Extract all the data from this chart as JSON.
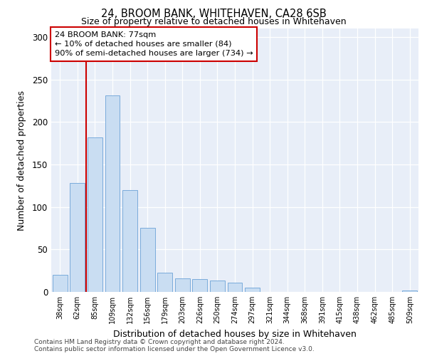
{
  "title": "24, BROOM BANK, WHITEHAVEN, CA28 6SB",
  "subtitle": "Size of property relative to detached houses in Whitehaven",
  "xlabel": "Distribution of detached houses by size in Whitehaven",
  "ylabel": "Number of detached properties",
  "bar_labels": [
    "38sqm",
    "62sqm",
    "85sqm",
    "109sqm",
    "132sqm",
    "156sqm",
    "179sqm",
    "203sqm",
    "226sqm",
    "250sqm",
    "274sqm",
    "297sqm",
    "321sqm",
    "344sqm",
    "368sqm",
    "391sqm",
    "415sqm",
    "438sqm",
    "462sqm",
    "485sqm",
    "509sqm"
  ],
  "bar_values": [
    20,
    128,
    182,
    231,
    120,
    75,
    23,
    16,
    15,
    13,
    11,
    5,
    0,
    0,
    0,
    0,
    0,
    0,
    0,
    0,
    2
  ],
  "bar_color": "#c9ddf2",
  "bar_edge_color": "#7aabdb",
  "vline_color": "#cc0000",
  "vline_x": 1.5,
  "ylim": [
    0,
    310
  ],
  "yticks": [
    0,
    50,
    100,
    150,
    200,
    250,
    300
  ],
  "annotation_title": "24 BROOM BANK: 77sqm",
  "annotation_line1": "← 10% of detached houses are smaller (84)",
  "annotation_line2": "90% of semi-detached houses are larger (734) →",
  "footer1": "Contains HM Land Registry data © Crown copyright and database right 2024.",
  "footer2": "Contains public sector information licensed under the Open Government Licence v3.0.",
  "bg_color": "#e8eef8"
}
